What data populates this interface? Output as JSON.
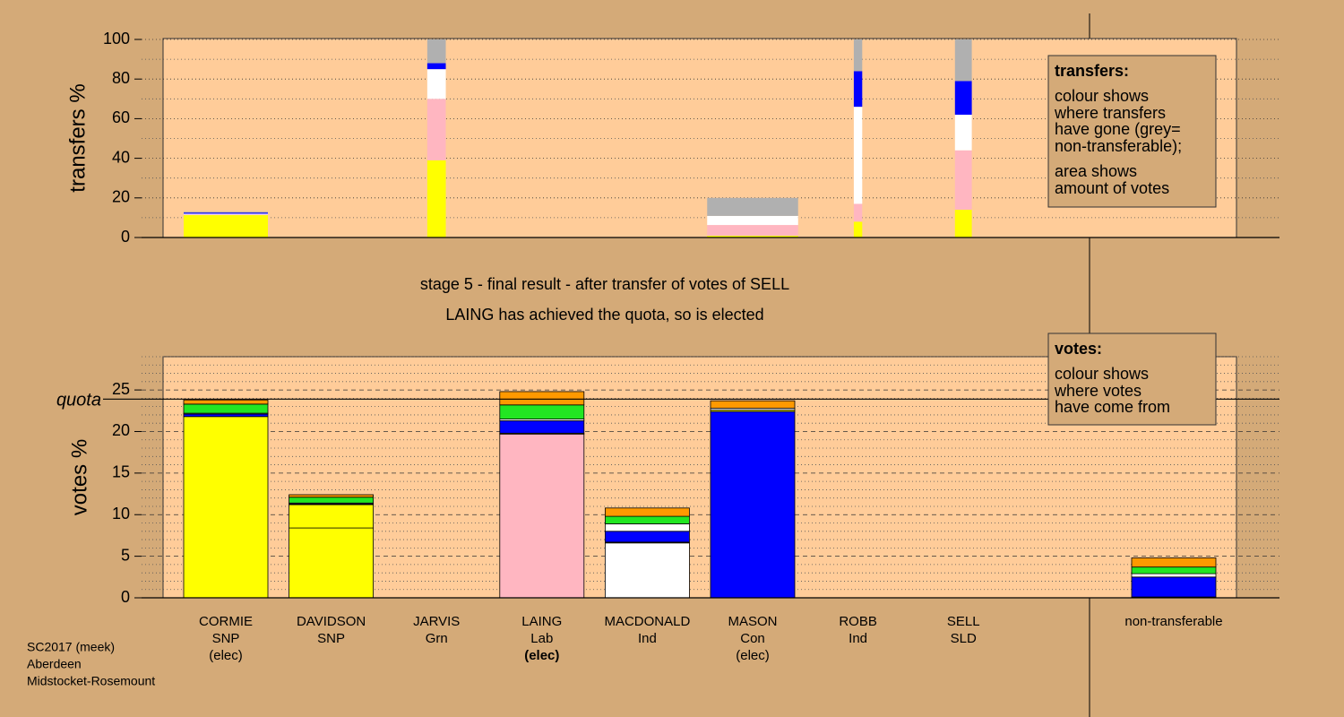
{
  "header": {
    "lines": [
      "stage 5 - final result - after transfer of votes of SELL",
      "LAING has achieved the quota, so is elected"
    ]
  },
  "transfers_box": {
    "heading": "transfers:",
    "paragraphs": [
      [
        "colour shows",
        "where transfers",
        "have gone (grey=",
        "non-transferable);"
      ],
      [
        "area shows",
        "amount of votes"
      ]
    ]
  },
  "votes_box": {
    "heading": "votes:",
    "lines": [
      "colour shows",
      "where votes",
      "have come from"
    ]
  },
  "footer": [
    "SC2017 (meek)",
    "Aberdeen",
    "Midstocket-Rosemount"
  ],
  "chart_data": [
    {
      "type": "bar",
      "stacked": true,
      "ylabel": "transfers %",
      "ylim": [
        0,
        100
      ],
      "yticks": [
        0,
        20,
        40,
        60,
        80,
        100
      ],
      "grid": "dotted",
      "minor_grid_step": 10,
      "widths": [
        1,
        0,
        0.22,
        0,
        0,
        1.08,
        0.1,
        0.2,
        0
      ],
      "series": [
        {
          "color": "#ffff00",
          "values": [
            11.3,
            0,
            39,
            0,
            0,
            0.9,
            8,
            14,
            0
          ]
        },
        {
          "color": "#ffb6c1",
          "values": [
            0.3,
            0,
            31,
            0,
            0,
            5.4,
            9,
            30,
            0
          ]
        },
        {
          "color": "#ffffff",
          "values": [
            0.4,
            0,
            15,
            0,
            0,
            4.6,
            49,
            18,
            0
          ]
        },
        {
          "color": "#0000ff",
          "values": [
            0.6,
            0,
            3,
            0,
            0,
            0,
            18,
            17,
            0
          ]
        },
        {
          "color": "#b0b0b0",
          "values": [
            0.4,
            0,
            12,
            0,
            0,
            9.1,
            16,
            21,
            0
          ]
        }
      ]
    },
    {
      "type": "bar",
      "stacked": true,
      "ylabel": "votes %",
      "ylim": [
        0,
        29
      ],
      "yticks": [
        0,
        5,
        10,
        15,
        20,
        25
      ],
      "grid": "dashed",
      "minor_grid_step": 1,
      "quota": 23.9,
      "quota_label": "quota",
      "categories": [
        "CORMIE",
        "DAVIDSON",
        "JARVIS",
        "LAING",
        "MACDONALD",
        "MASON",
        "ROBB",
        "SELL",
        "non-transferable"
      ],
      "parties": [
        "SNP",
        "SNP",
        "Grn",
        "Lab",
        "Ind",
        "Con",
        "Ind",
        "SLD",
        null
      ],
      "notes": [
        "(elec)",
        null,
        null,
        "(elec)",
        null,
        "(elec)",
        null,
        null,
        null
      ],
      "bold_note": 3,
      "series": [
        {
          "colors": [
            "#ffff00",
            "#ffff00",
            "#22e622",
            "#ffb6c1",
            "#ffffff",
            "#0000ff",
            "#ffffff",
            "#ff9900",
            "#b0b0b0"
          ],
          "values": [
            21.8,
            8.4,
            0,
            19.7,
            6.6,
            22.4,
            0,
            0,
            0
          ]
        },
        {
          "color": "#ffff00",
          "values": [
            0,
            2.8,
            0,
            0.1,
            0.1,
            0.2,
            0,
            0,
            0.1
          ]
        },
        {
          "color": "#0000ff",
          "values": [
            0.3,
            0.1,
            0,
            1.5,
            1.3,
            0,
            0,
            0,
            2.4
          ]
        },
        {
          "color": "#ffffff",
          "values": [
            0.1,
            0.1,
            0,
            0.2,
            0.9,
            0.2,
            0,
            0,
            0.4
          ]
        },
        {
          "color": "#22e622",
          "values": [
            1.1,
            0.7,
            0,
            1.7,
            0.9,
            0,
            0,
            0,
            0.8
          ]
        },
        {
          "color": "#ff9900",
          "values": [
            0.5,
            0.3,
            0,
            1.6,
            1.0,
            0.9,
            0,
            0,
            1.1
          ]
        }
      ]
    }
  ]
}
